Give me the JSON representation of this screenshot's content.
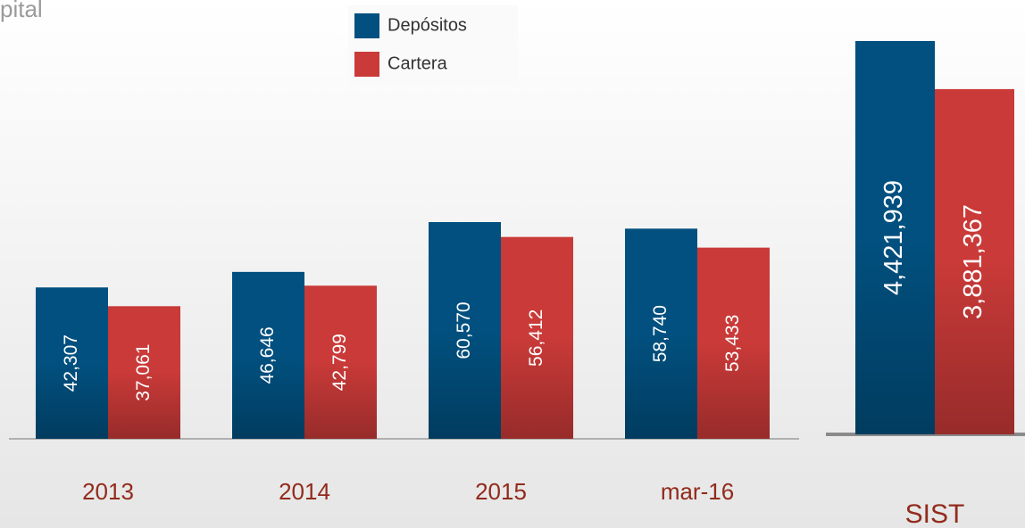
{
  "chart_data": [
    {
      "type": "bar",
      "title": "pital",
      "legend": "top",
      "categories": [
        "2013",
        "2014",
        "2015",
        "mar-16"
      ],
      "series": [
        {
          "name": "Depósitos",
          "color": "#01507f",
          "values": [
            42307,
            46646,
            60570,
            58740
          ],
          "value_labels": [
            "42,307",
            "46,646",
            "60,570",
            "58,740"
          ]
        },
        {
          "name": "Cartera",
          "color": "#c93a38",
          "values": [
            37061,
            42799,
            56412,
            53433
          ],
          "value_labels": [
            "37,061",
            "42,799",
            "56,412",
            "53,433"
          ]
        }
      ]
    },
    {
      "type": "bar",
      "categories": [
        "SIST"
      ],
      "series": [
        {
          "color": "#01507f",
          "values": [
            4421939
          ],
          "value_labels": [
            "4,421,939"
          ]
        },
        {
          "color": "#c93a38",
          "values": [
            3881367
          ],
          "value_labels": [
            "3,881,367"
          ]
        }
      ]
    }
  ]
}
